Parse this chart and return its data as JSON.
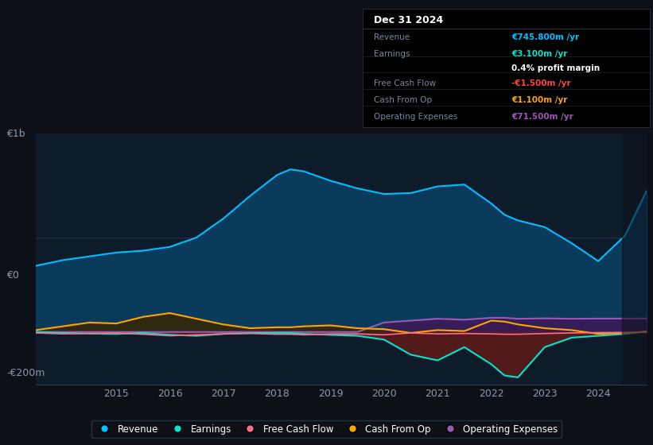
{
  "bg_color": "#0d1117",
  "plot_bg_color": "#0d1b2a",
  "title": "Dec 31 2024",
  "table_data": {
    "Revenue": {
      "value": "€745.800m /yr",
      "color": "#00bfff"
    },
    "Earnings": {
      "value": "€3.100m /yr",
      "color": "#00e5cc"
    },
    "profit_margin": {
      "value": "0.4% profit margin",
      "color": "#ffffff"
    },
    "Free Cash Flow": {
      "value": "-€1.500m /yr",
      "color": "#ff4444"
    },
    "Cash From Op": {
      "value": "€1.100m /yr",
      "color": "#ffa500"
    },
    "Operating Expenses": {
      "value": "€71.500m /yr",
      "color": "#9b59b6"
    }
  },
  "ylabel_top": "€1b",
  "ylabel_mid": "€0",
  "ylabel_bot": "-€200m",
  "years": [
    2013.5,
    2014,
    2014.5,
    2015,
    2015.5,
    2016,
    2016.5,
    2017,
    2017.5,
    2018,
    2018.25,
    2018.5,
    2019,
    2019.5,
    2020,
    2020.5,
    2021,
    2021.5,
    2022,
    2022.25,
    2022.5,
    2023,
    2023.5,
    2024,
    2024.5,
    2024.9
  ],
  "revenue": [
    350,
    380,
    400,
    420,
    430,
    450,
    500,
    600,
    720,
    830,
    860,
    850,
    800,
    760,
    730,
    735,
    770,
    780,
    680,
    620,
    590,
    555,
    470,
    375,
    510,
    746
  ],
  "earnings": [
    0,
    -5,
    -8,
    -10,
    -5,
    -15,
    -20,
    -10,
    -5,
    -5,
    -5,
    -10,
    -15,
    -20,
    -40,
    -120,
    -150,
    -80,
    -170,
    -230,
    -240,
    -80,
    -30,
    -20,
    -10,
    3
  ],
  "free_cash_flow": [
    -5,
    -10,
    -8,
    -5,
    -12,
    -20,
    -15,
    -10,
    -8,
    -12,
    -12,
    -15,
    -10,
    -10,
    -15,
    -5,
    -10,
    -8,
    -10,
    -12,
    -12,
    -8,
    -5,
    -3,
    -2,
    -1.5
  ],
  "cash_from_op": [
    10,
    30,
    50,
    45,
    80,
    100,
    70,
    40,
    20,
    25,
    25,
    30,
    35,
    20,
    15,
    -5,
    10,
    5,
    60,
    55,
    40,
    20,
    10,
    -10,
    -5,
    1.1
  ],
  "operating_expenses": [
    0,
    0,
    0,
    0,
    0,
    0,
    0,
    0,
    0,
    0,
    0,
    0,
    0,
    0,
    50,
    60,
    70,
    65,
    75,
    75,
    70,
    72,
    70,
    71,
    71,
    71.5
  ],
  "colors": {
    "revenue_line": "#00bfff",
    "revenue_fill": "#0a3a5c",
    "earnings_line": "#00e5cc",
    "earnings_fill_neg": "#5a1a1a",
    "free_cash_flow_line": "#ff6b8a",
    "cash_from_op_line": "#ffa500",
    "cash_from_op_fill_pos": "#3a2500",
    "operating_expenses_line": "#9b59b6",
    "operating_expenses_fill": "#3a1a5a"
  },
  "xticks": [
    2015,
    2016,
    2017,
    2018,
    2019,
    2020,
    2021,
    2022,
    2023,
    2024
  ],
  "legend": [
    {
      "label": "Revenue",
      "color": "#00bfff"
    },
    {
      "label": "Earnings",
      "color": "#00e5cc"
    },
    {
      "label": "Free Cash Flow",
      "color": "#ff6b8a"
    },
    {
      "label": "Cash From Op",
      "color": "#ffa500"
    },
    {
      "label": "Operating Expenses",
      "color": "#9b59b6"
    }
  ]
}
